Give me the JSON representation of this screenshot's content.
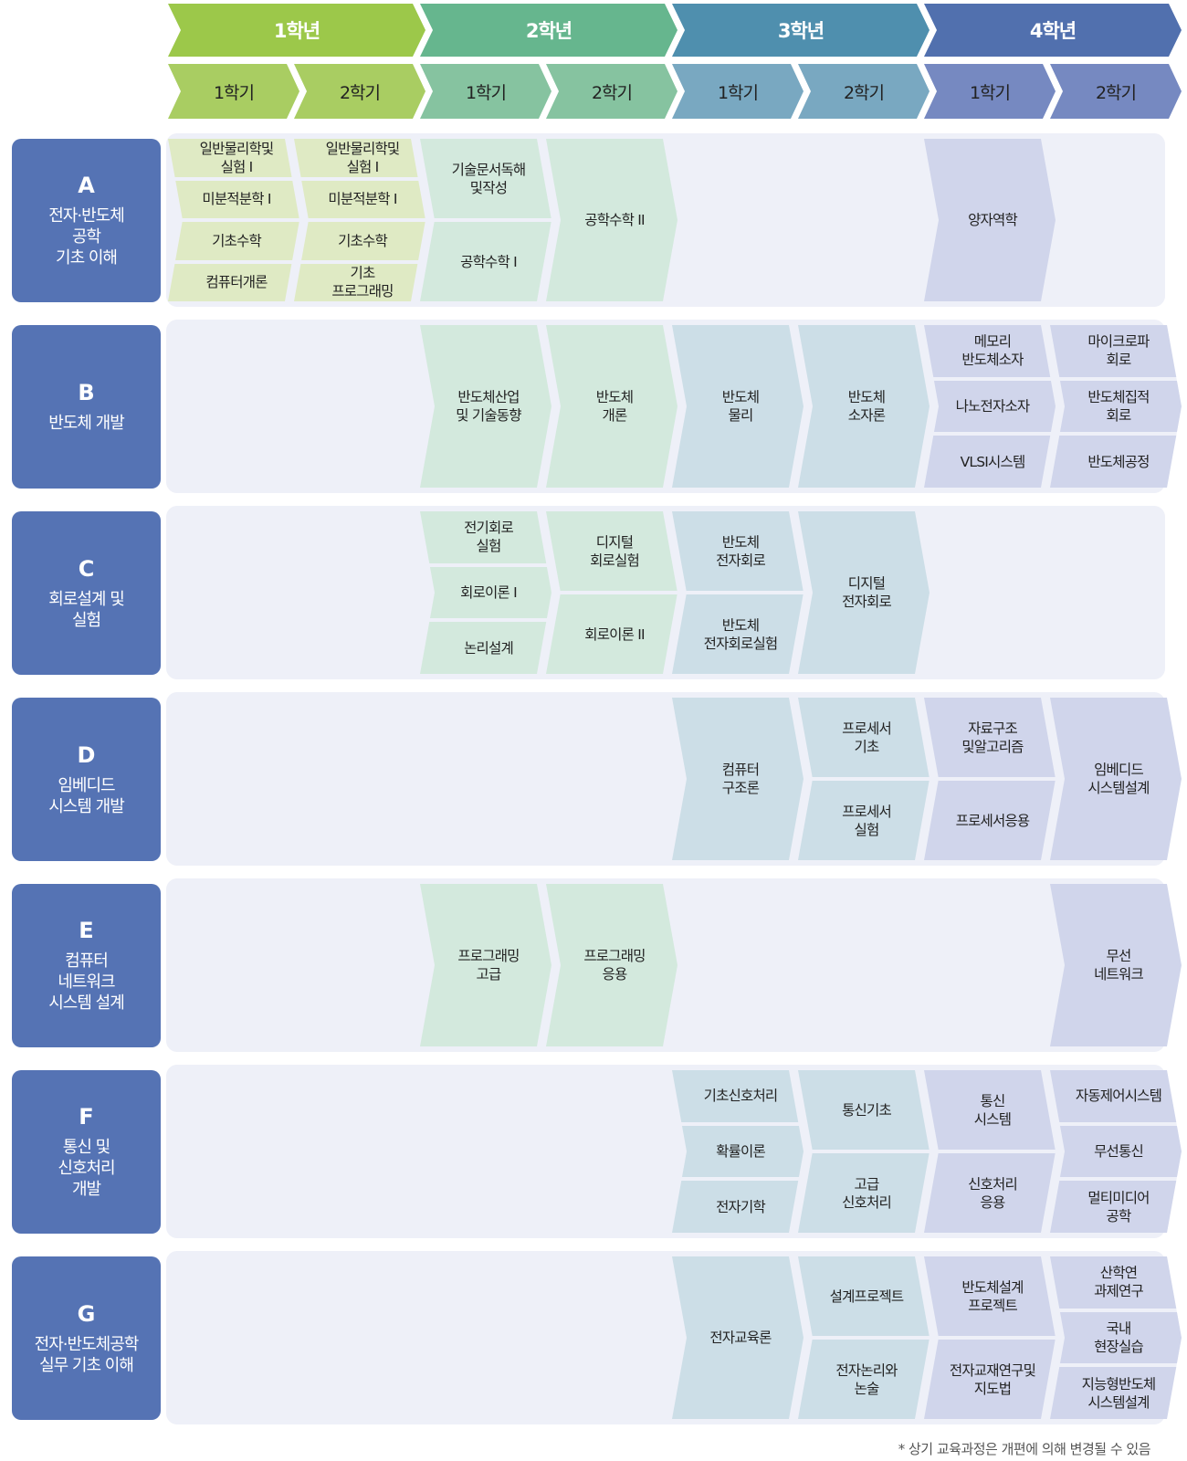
{
  "colors": {
    "year_header": [
      "#9cc84a",
      "#66b68e",
      "#4f8fae",
      "#5170ae"
    ],
    "semester_header": [
      "#a9cd62",
      "#86c3a0",
      "#79a8c1",
      "#7689c1"
    ],
    "course_fill": [
      "#dfeac4",
      "#d3e9dd",
      "#ccdee7",
      "#d0d5eb"
    ],
    "track_label": "#5573b4",
    "band": "#eef0f8"
  },
  "years": [
    "1학년",
    "2학년",
    "3학년",
    "4학년"
  ],
  "semesters": [
    "1학기",
    "2학기",
    "1학기",
    "2학기",
    "1학기",
    "2학기",
    "1학기",
    "2학기"
  ],
  "tracks": [
    {
      "letter": "A",
      "title": "전자·반도체\n공학\n기초 이해",
      "cells": [
        {
          "sem": 0,
          "items": [
            "일반물리학및\n실험 I",
            "미분적분학 I",
            "기초수학",
            "컴퓨터개론"
          ]
        },
        {
          "sem": 1,
          "items": [
            "일반물리학및\n실험 I",
            "미분적분학 I",
            "기초수학",
            "기초\n프로그래밍"
          ]
        },
        {
          "sem": 2,
          "items": [
            "기술문서독해\n및작성",
            "공학수학 I"
          ]
        },
        {
          "sem": 3,
          "items": [
            "공학수학 II"
          ]
        },
        {
          "sem": 6,
          "items": [
            "양자역학"
          ]
        }
      ]
    },
    {
      "letter": "B",
      "title": "반도체 개발",
      "cells": [
        {
          "sem": 2,
          "items": [
            "반도체산업\n및 기술동향"
          ]
        },
        {
          "sem": 3,
          "items": [
            "반도체\n개론"
          ]
        },
        {
          "sem": 4,
          "items": [
            "반도체\n물리"
          ]
        },
        {
          "sem": 5,
          "items": [
            "반도체\n소자론"
          ]
        },
        {
          "sem": 6,
          "items": [
            "메모리\n반도체소자",
            "나노전자소자",
            "VLSI시스템"
          ]
        },
        {
          "sem": 7,
          "items": [
            "마이크로파\n회로",
            "반도체집적\n회로",
            "반도체공정"
          ]
        }
      ]
    },
    {
      "letter": "C",
      "title": "회로설계 및\n실험",
      "cells": [
        {
          "sem": 2,
          "items": [
            "전기회로\n실험",
            "회로이론 I",
            "논리설계"
          ]
        },
        {
          "sem": 3,
          "items": [
            "디지털\n회로실험",
            "회로이론 II"
          ]
        },
        {
          "sem": 4,
          "items": [
            "반도체\n전자회로",
            "반도체\n전자회로실험"
          ]
        },
        {
          "sem": 5,
          "items": [
            "디지털\n전자회로"
          ]
        }
      ]
    },
    {
      "letter": "D",
      "title": "임베디드\n시스템 개발",
      "cells": [
        {
          "sem": 4,
          "items": [
            "컴퓨터\n구조론"
          ]
        },
        {
          "sem": 5,
          "items": [
            "프로세서\n기초",
            "프로세서\n실험"
          ]
        },
        {
          "sem": 6,
          "items": [
            "자료구조\n및알고리즘",
            "프로세서응용"
          ]
        },
        {
          "sem": 7,
          "items": [
            "임베디드\n시스템설계"
          ]
        }
      ]
    },
    {
      "letter": "E",
      "title": "컴퓨터\n네트워크\n시스템 설계",
      "cells": [
        {
          "sem": 2,
          "items": [
            "프로그래밍\n고급"
          ]
        },
        {
          "sem": 3,
          "items": [
            "프로그래밍\n응용"
          ]
        },
        {
          "sem": 7,
          "items": [
            "무선\n네트워크"
          ]
        }
      ]
    },
    {
      "letter": "F",
      "title": "통신 및\n신호처리\n개발",
      "cells": [
        {
          "sem": 4,
          "items": [
            "기초신호처리",
            "확률이론",
            "전자기학"
          ]
        },
        {
          "sem": 5,
          "items": [
            "통신기초",
            "고급\n신호처리"
          ]
        },
        {
          "sem": 6,
          "items": [
            "통신\n시스템",
            "신호처리\n응용"
          ]
        },
        {
          "sem": 7,
          "items": [
            "자동제어시스템",
            "무선통신",
            "멀티미디어\n공학"
          ]
        }
      ]
    },
    {
      "letter": "G",
      "title": "전자·반도체공학\n실무 기초 이해",
      "cells": [
        {
          "sem": 4,
          "items": [
            "전자교육론"
          ]
        },
        {
          "sem": 5,
          "items": [
            "설계프로젝트",
            "전자논리와\n논술"
          ]
        },
        {
          "sem": 6,
          "items": [
            "반도체설계\n프로젝트",
            "전자교재연구및\n지도법"
          ]
        },
        {
          "sem": 7,
          "items": [
            "산학연\n과제연구",
            "국내\n현장실습",
            "지능형반도체\n시스템설계"
          ]
        }
      ]
    }
  ],
  "footnote": "* 상기 교육과정은 개편에 의해 변경될 수 있음"
}
